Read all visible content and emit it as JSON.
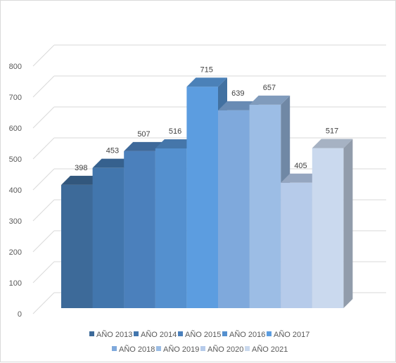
{
  "chart_data": {
    "type": "bar",
    "style": "3d-column",
    "categories": [
      "AÑO 2013",
      "AÑO 2014",
      "AÑO 2015",
      "AÑO 2016",
      "AÑO 2017",
      "AÑO 2018",
      "AÑO 2019",
      "AÑO 2020",
      "AÑO 2021"
    ],
    "values": [
      398,
      453,
      507,
      516,
      715,
      639,
      657,
      405,
      517
    ],
    "colors": [
      "#3d6a99",
      "#4276ad",
      "#4b80bc",
      "#5490cf",
      "#5c9de0",
      "#7fa9dc",
      "#9cbde5",
      "#b6cbea",
      "#cad9ee"
    ],
    "ylim": [
      0,
      800
    ],
    "yticks": [
      "0",
      "100",
      "200",
      "300",
      "400",
      "500",
      "600",
      "700",
      "800"
    ],
    "grid": true,
    "legend": "bottom",
    "title": "",
    "xlabel": "",
    "ylabel": ""
  }
}
